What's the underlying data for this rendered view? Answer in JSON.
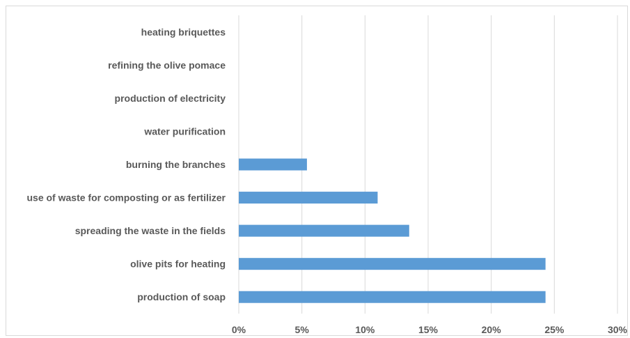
{
  "chart_data": {
    "type": "bar",
    "orientation": "horizontal",
    "categories": [
      "heating briquettes",
      "refining the olive pomace",
      "production of electricity",
      "water purification",
      "burning the branches",
      "use of waste for composting or as fertilizer",
      "spreading the waste in the fields",
      "olive pits for heating",
      "production of soap"
    ],
    "values": [
      0,
      0,
      0,
      0,
      5.4,
      11.0,
      13.5,
      24.3,
      24.3
    ],
    "x_ticks": [
      "0%",
      "5%",
      "10%",
      "15%",
      "20%",
      "25%",
      "30%"
    ],
    "xlim": [
      0,
      30
    ],
    "title": "",
    "xlabel": "",
    "ylabel": "",
    "grid": "vertical",
    "bar_color": "#5b9bd5"
  }
}
